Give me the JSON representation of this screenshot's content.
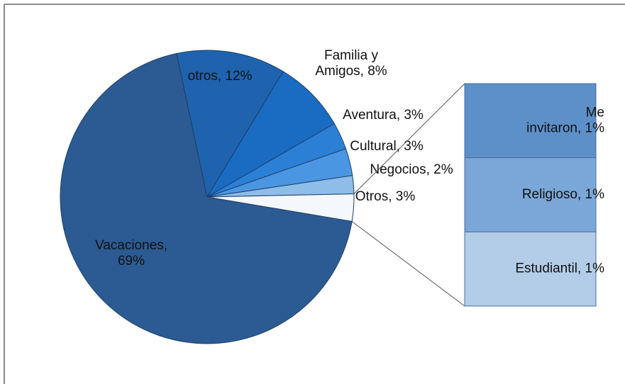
{
  "chart_data": {
    "type": "pie-of-bar",
    "values": [
      69,
      12,
      8,
      3,
      3,
      2,
      3
    ],
    "value_labels": [
      "Vacaciones,\n69%",
      "otros, 12%",
      "Familia y\nAmigos, 8%",
      "Aventura, 3%",
      "Cultural, 3%",
      "Negocios, 2%",
      "Otros, 3%"
    ],
    "colors": [
      "#2c5b93",
      "#1f63ae",
      "#1a6cc2",
      "#2b80d6",
      "#4b96e2",
      "#8fbde9",
      "#f4f7fb"
    ],
    "bar": {
      "values": [
        1,
        1,
        1
      ],
      "value_labels": [
        "Me\ninvitaron, 1%",
        "Religioso, 1%",
        "Estudiantil, 1%"
      ],
      "colors": [
        "#5d90c9",
        "#7ba7d8",
        "#b3cde9"
      ]
    }
  }
}
